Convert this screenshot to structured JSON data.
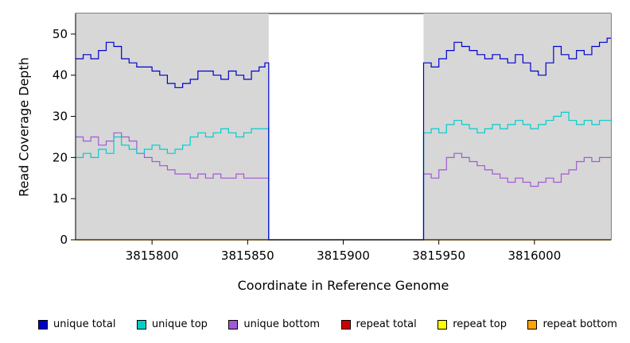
{
  "chart_data": {
    "type": "line",
    "title": "",
    "xlabel": "Coordinate in Reference Genome",
    "ylabel": "Read Coverage Depth",
    "xlim": [
      3815760,
      3816040
    ],
    "ylim": [
      0,
      55
    ],
    "x_ticks": [
      3815800,
      3815850,
      3815900,
      3815950,
      3816000
    ],
    "y_ticks": [
      0,
      10,
      20,
      30,
      40,
      50
    ],
    "step": true,
    "grid": false,
    "legend_position": "bottom",
    "gap_region": [
      3815861,
      3815942
    ],
    "background_regions": {
      "color": "#d7d7d7",
      "ranges": [
        [
          3815760,
          3815861
        ],
        [
          3815942,
          3816040
        ]
      ]
    },
    "draw_order": [
      "repeat total",
      "repeat top",
      "unique bottom",
      "unique top",
      "unique total",
      "repeat bottom"
    ],
    "legend_order": [
      "unique total",
      "unique top",
      "unique bottom",
      "repeat total",
      "repeat top",
      "repeat bottom"
    ],
    "series": [
      {
        "name": "unique total",
        "color": "#0000CD",
        "points": [
          [
            3815760,
            44
          ],
          [
            3815764,
            45
          ],
          [
            3815768,
            44
          ],
          [
            3815772,
            46
          ],
          [
            3815776,
            48
          ],
          [
            3815780,
            47
          ],
          [
            3815784,
            44
          ],
          [
            3815788,
            43
          ],
          [
            3815792,
            42
          ],
          [
            3815796,
            42
          ],
          [
            3815800,
            41
          ],
          [
            3815804,
            40
          ],
          [
            3815808,
            38
          ],
          [
            3815812,
            37
          ],
          [
            3815816,
            38
          ],
          [
            3815820,
            39
          ],
          [
            3815824,
            41
          ],
          [
            3815828,
            41
          ],
          [
            3815832,
            40
          ],
          [
            3815836,
            39
          ],
          [
            3815840,
            41
          ],
          [
            3815844,
            40
          ],
          [
            3815848,
            39
          ],
          [
            3815852,
            41
          ],
          [
            3815856,
            42
          ],
          [
            3815859,
            43
          ],
          [
            3815861,
            0
          ],
          [
            3815942,
            43
          ],
          [
            3815946,
            42
          ],
          [
            3815950,
            44
          ],
          [
            3815954,
            46
          ],
          [
            3815958,
            48
          ],
          [
            3815962,
            47
          ],
          [
            3815966,
            46
          ],
          [
            3815970,
            45
          ],
          [
            3815974,
            44
          ],
          [
            3815978,
            45
          ],
          [
            3815982,
            44
          ],
          [
            3815986,
            43
          ],
          [
            3815990,
            45
          ],
          [
            3815994,
            43
          ],
          [
            3815998,
            41
          ],
          [
            3816002,
            40
          ],
          [
            3816006,
            43
          ],
          [
            3816010,
            47
          ],
          [
            3816014,
            45
          ],
          [
            3816018,
            44
          ],
          [
            3816022,
            46
          ],
          [
            3816026,
            45
          ],
          [
            3816030,
            47
          ],
          [
            3816034,
            48
          ],
          [
            3816038,
            49
          ]
        ]
      },
      {
        "name": "unique top",
        "color": "#00CDCD",
        "points": [
          [
            3815760,
            20
          ],
          [
            3815764,
            21
          ],
          [
            3815768,
            20
          ],
          [
            3815772,
            22
          ],
          [
            3815776,
            21
          ],
          [
            3815780,
            25
          ],
          [
            3815784,
            23
          ],
          [
            3815788,
            22
          ],
          [
            3815792,
            21
          ],
          [
            3815796,
            22
          ],
          [
            3815800,
            23
          ],
          [
            3815804,
            22
          ],
          [
            3815808,
            21
          ],
          [
            3815812,
            22
          ],
          [
            3815816,
            23
          ],
          [
            3815820,
            25
          ],
          [
            3815824,
            26
          ],
          [
            3815828,
            25
          ],
          [
            3815832,
            26
          ],
          [
            3815836,
            27
          ],
          [
            3815840,
            26
          ],
          [
            3815844,
            25
          ],
          [
            3815848,
            26
          ],
          [
            3815852,
            27
          ],
          [
            3815856,
            27
          ],
          [
            3815861,
            0
          ],
          [
            3815942,
            26
          ],
          [
            3815946,
            27
          ],
          [
            3815950,
            26
          ],
          [
            3815954,
            28
          ],
          [
            3815958,
            29
          ],
          [
            3815962,
            28
          ],
          [
            3815966,
            27
          ],
          [
            3815970,
            26
          ],
          [
            3815974,
            27
          ],
          [
            3815978,
            28
          ],
          [
            3815982,
            27
          ],
          [
            3815986,
            28
          ],
          [
            3815990,
            29
          ],
          [
            3815994,
            28
          ],
          [
            3815998,
            27
          ],
          [
            3816002,
            28
          ],
          [
            3816006,
            29
          ],
          [
            3816010,
            30
          ],
          [
            3816014,
            31
          ],
          [
            3816018,
            29
          ],
          [
            3816022,
            28
          ],
          [
            3816026,
            29
          ],
          [
            3816030,
            28
          ],
          [
            3816034,
            29
          ],
          [
            3816038,
            29
          ]
        ]
      },
      {
        "name": "unique bottom",
        "color": "#A05AD5",
        "points": [
          [
            3815760,
            25
          ],
          [
            3815764,
            24
          ],
          [
            3815768,
            25
          ],
          [
            3815772,
            23
          ],
          [
            3815776,
            24
          ],
          [
            3815780,
            26
          ],
          [
            3815784,
            25
          ],
          [
            3815788,
            24
          ],
          [
            3815792,
            21
          ],
          [
            3815796,
            20
          ],
          [
            3815800,
            19
          ],
          [
            3815804,
            18
          ],
          [
            3815808,
            17
          ],
          [
            3815812,
            16
          ],
          [
            3815816,
            16
          ],
          [
            3815820,
            15
          ],
          [
            3815824,
            16
          ],
          [
            3815828,
            15
          ],
          [
            3815832,
            16
          ],
          [
            3815836,
            15
          ],
          [
            3815840,
            15
          ],
          [
            3815844,
            16
          ],
          [
            3815848,
            15
          ],
          [
            3815852,
            15
          ],
          [
            3815856,
            15
          ],
          [
            3815861,
            0
          ],
          [
            3815942,
            16
          ],
          [
            3815946,
            15
          ],
          [
            3815950,
            17
          ],
          [
            3815954,
            20
          ],
          [
            3815958,
            21
          ],
          [
            3815962,
            20
          ],
          [
            3815966,
            19
          ],
          [
            3815970,
            18
          ],
          [
            3815974,
            17
          ],
          [
            3815978,
            16
          ],
          [
            3815982,
            15
          ],
          [
            3815986,
            14
          ],
          [
            3815990,
            15
          ],
          [
            3815994,
            14
          ],
          [
            3815998,
            13
          ],
          [
            3816002,
            14
          ],
          [
            3816006,
            15
          ],
          [
            3816010,
            14
          ],
          [
            3816014,
            16
          ],
          [
            3816018,
            17
          ],
          [
            3816022,
            19
          ],
          [
            3816026,
            20
          ],
          [
            3816030,
            19
          ],
          [
            3816034,
            20
          ],
          [
            3816038,
            20
          ]
        ]
      },
      {
        "name": "repeat total",
        "color": "#CD0000",
        "points": [
          [
            3815760,
            0
          ]
        ]
      },
      {
        "name": "repeat top",
        "color": "#FFFF00",
        "points": [
          [
            3815760,
            0
          ]
        ]
      },
      {
        "name": "repeat bottom",
        "color": "#FFA500",
        "points": [
          [
            3815760,
            0
          ]
        ]
      }
    ]
  }
}
